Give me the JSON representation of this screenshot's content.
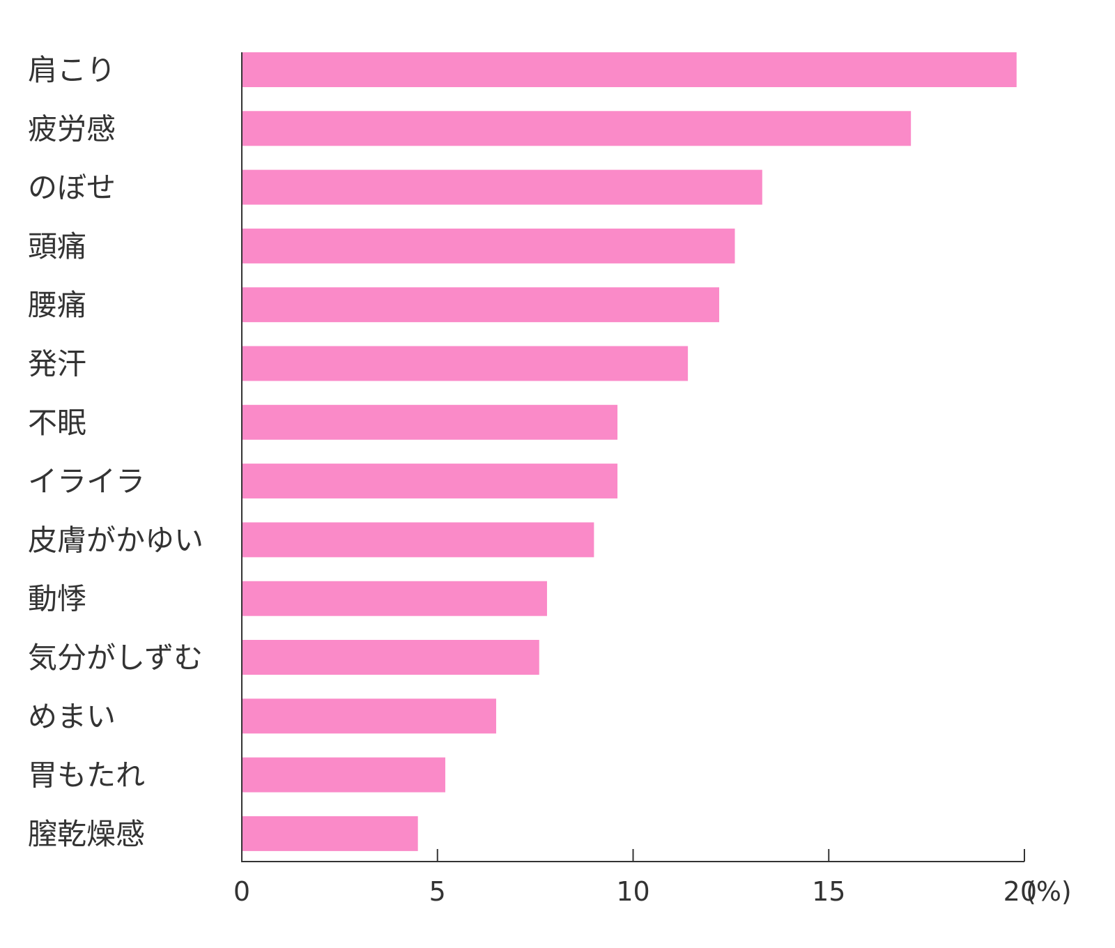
{
  "chart_data": {
    "type": "bar",
    "orientation": "horizontal",
    "categories": [
      "肩こり",
      "疲労感",
      "のぼせ",
      "頭痛",
      "腰痛",
      "発汗",
      "不眠",
      "イライラ",
      "皮膚がかゆい",
      "動悸",
      "気分がしずむ",
      "めまい",
      "胃もたれ",
      "膣乾燥感"
    ],
    "values": [
      19.8,
      17.1,
      13.3,
      12.6,
      12.2,
      11.4,
      9.6,
      9.6,
      9.0,
      7.8,
      7.6,
      6.5,
      5.2,
      4.5
    ],
    "xlim": [
      0,
      20
    ],
    "xticks": [
      "0",
      "5",
      "10",
      "15",
      "20"
    ],
    "x_unit": "(%)",
    "title": "",
    "xlabel": "",
    "ylabel": "",
    "grid": false,
    "bar_color": "#fa8ac8",
    "axis_color": "#333333"
  }
}
